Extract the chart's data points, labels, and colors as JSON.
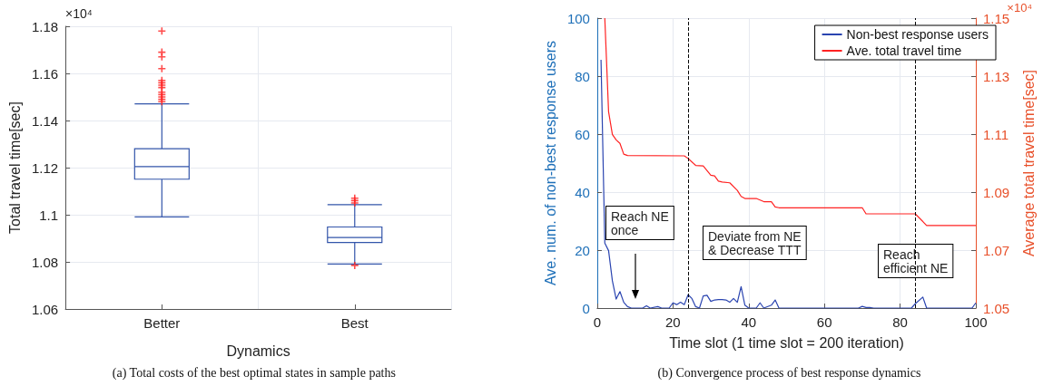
{
  "chart_data": [
    {
      "type": "box",
      "xlabel": "Dynamics",
      "ylabel": "Total travel time[sec]",
      "categories": [
        "Better",
        "Best"
      ],
      "ylim": [
        1.06,
        1.18
      ],
      "yticks": [
        1.06,
        1.08,
        1.1,
        1.12,
        1.14,
        1.16,
        1.18
      ],
      "grid": true,
      "series": [
        {
          "color": "#3355aa",
          "boxes": [
            {
              "low": 1.0991,
              "q1": 1.1151,
              "median": 1.1204,
              "q3": 1.128,
              "high": 1.1471,
              "outliers": [
                1.148,
                1.149,
                1.15,
                1.151,
                1.152,
                1.154,
                1.155,
                1.156,
                1.157,
                1.162,
                1.167,
                1.169,
                1.178
              ]
            },
            {
              "low": 1.0791,
              "q1": 1.0882,
              "median": 1.0903,
              "q3": 1.0948,
              "high": 1.1043,
              "outliers": [
                1.105,
                1.106,
                1.107,
                1.0785
              ]
            }
          ]
        }
      ],
      "annotations": [
        "×10⁴",
        "(a) Total costs of the best optimal states in sample paths"
      ]
    },
    {
      "type": "line",
      "xlabel": "Time slot (1 time slot = 200 iteration)",
      "ylabel": "Ave. num. of non-best response users",
      "y2label": "Average total travel time[sec]",
      "xlim": [
        0,
        100
      ],
      "xticks": [
        0,
        20,
        40,
        60,
        80,
        100
      ],
      "ylim": [
        0,
        100
      ],
      "yticks": [
        0,
        20,
        40,
        60,
        80,
        100
      ],
      "y2lim": [
        1.05,
        1.15
      ],
      "y2ticks": [
        1.05,
        1.07,
        1.09,
        1.11,
        1.13,
        1.15
      ],
      "grid": true,
      "legend": "top right",
      "marker": "none",
      "series": [
        {
          "name": "Non-best response users",
          "color": "#2a44b0",
          "x": [
            1,
            2,
            3,
            4,
            5,
            6,
            7,
            8,
            9,
            12,
            13,
            14,
            16,
            17,
            19,
            20,
            21,
            22,
            23,
            24,
            25,
            26,
            27,
            28,
            29,
            30,
            31,
            32,
            33,
            34,
            35,
            36,
            37,
            38,
            39,
            40,
            42,
            43,
            44,
            46,
            47,
            48,
            52,
            55,
            60,
            69,
            70,
            71,
            72,
            73,
            83,
            84,
            86,
            87,
            99,
            100
          ],
          "values": [
            85.6,
            22.4,
            19.8,
            9.4,
            3.1,
            5.7,
            2,
            0.5,
            0,
            0,
            0.8,
            0,
            0.5,
            0,
            0,
            1.8,
            1.2,
            2,
            1.2,
            4.6,
            3.3,
            0.5,
            0,
            4.2,
            4.4,
            2.3,
            2.8,
            2.9,
            2.9,
            2.8,
            2,
            3.3,
            2,
            7.4,
            1,
            0,
            0,
            1.8,
            0,
            1,
            2.8,
            0,
            0,
            0,
            0,
            0,
            0.6,
            0.2,
            0.2,
            0,
            0,
            1.5,
            3.8,
            0,
            0,
            1.8
          ]
        },
        {
          "name": "Ave. total travel time",
          "color": "#ff2222",
          "axis": "y2",
          "x": [
            2,
            3,
            4,
            5,
            6,
            7,
            8,
            23,
            24,
            26,
            28,
            30,
            31,
            32,
            33,
            35,
            37,
            38,
            39,
            42,
            44,
            46,
            47,
            48,
            70,
            71,
            84,
            87,
            100
          ],
          "values": [
            1.15,
            1.1177,
            1.1099,
            1.108,
            1.1068,
            1.1031,
            1.1026,
            1.1025,
            1.1016,
            1.0992,
            1.099,
            1.0958,
            1.0956,
            1.0938,
            1.0935,
            1.0932,
            1.0906,
            1.0885,
            1.0878,
            1.0878,
            1.0867,
            1.0867,
            1.0849,
            1.0846,
            1.0846,
            1.0825,
            1.0825,
            1.0785,
            1.0785
          ]
        }
      ],
      "ref_lines": [
        {
          "axis": "x",
          "value": 24,
          "label": null,
          "line_style": "dashed",
          "color": "#000000"
        },
        {
          "axis": "x",
          "value": 84,
          "label": null,
          "line_style": "dashed",
          "color": "#000000"
        }
      ],
      "annotations": [
        "×10⁴",
        "Reach NE\nonce",
        "Deviate from NE\n& Decrease TTT",
        "Reach\nefficient NE",
        "(b) Convergence process of best response dynamics"
      ]
    }
  ]
}
